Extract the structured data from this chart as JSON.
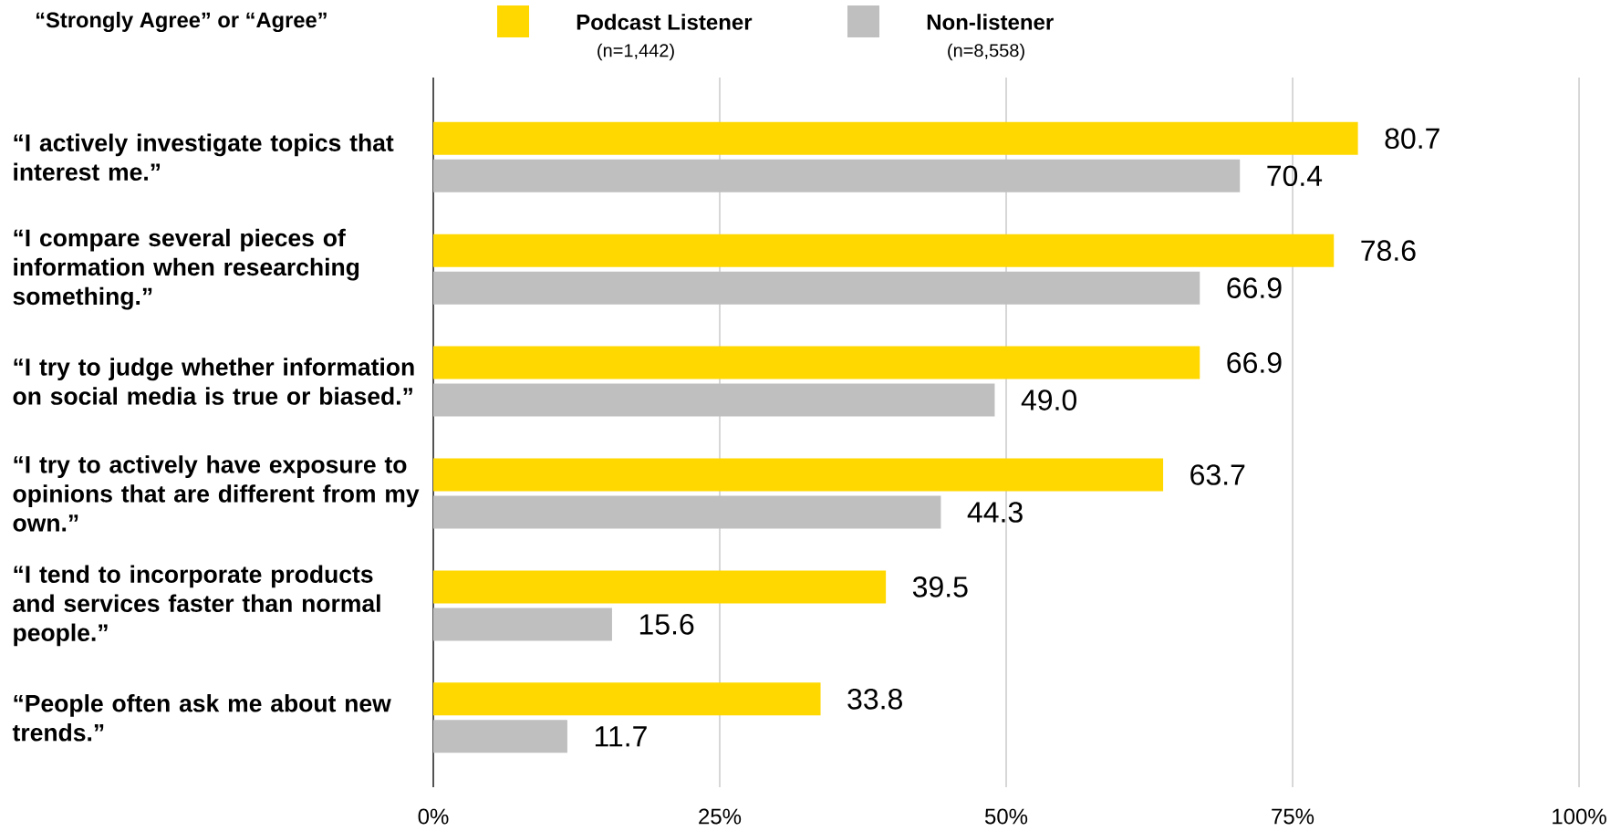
{
  "chart_data": {
    "type": "bar",
    "orientation": "horizontal",
    "title": "“Strongly Agree” or “Agree”",
    "categories": [
      "“I actively investigate topics that interest me.”",
      "“I compare several pieces of information when researching something.”",
      "“I try to judge whether information on social media is true or biased.”",
      "“I try to actively have exposure to opinions that are different from my own.”",
      "“I tend to incorporate products and services faster than normal people.”",
      "“People often ask me about new trends.”"
    ],
    "series": [
      {
        "name": "Podcast Listener",
        "color": "#ffd800",
        "values": [
          80.7,
          78.6,
          66.9,
          63.7,
          39.5,
          33.8
        ],
        "value_labels": [
          "80.7",
          "78.6",
          "66.9",
          "63.7",
          "39.5",
          "33.8"
        ]
      },
      {
        "name": "Non-listener",
        "color": "#bfbfbf",
        "values": [
          70.4,
          66.9,
          49.0,
          44.3,
          15.6,
          11.7
        ],
        "value_labels": [
          "70.4",
          "66.9",
          "49.0",
          "44.3",
          "15.6",
          "11.7"
        ]
      }
    ],
    "xlim": [
      0,
      100
    ],
    "xticks": [
      {
        "value": 0,
        "label": "0%"
      },
      {
        "value": 25,
        "label": "25%"
      },
      {
        "value": 50,
        "label": "50%"
      },
      {
        "value": 75,
        "label": "75%"
      },
      {
        "value": 100,
        "label": "100%"
      }
    ],
    "grid": "x",
    "legend": "top",
    "annotations": [
      "(n=1,442)",
      "(n=8,558)"
    ]
  }
}
